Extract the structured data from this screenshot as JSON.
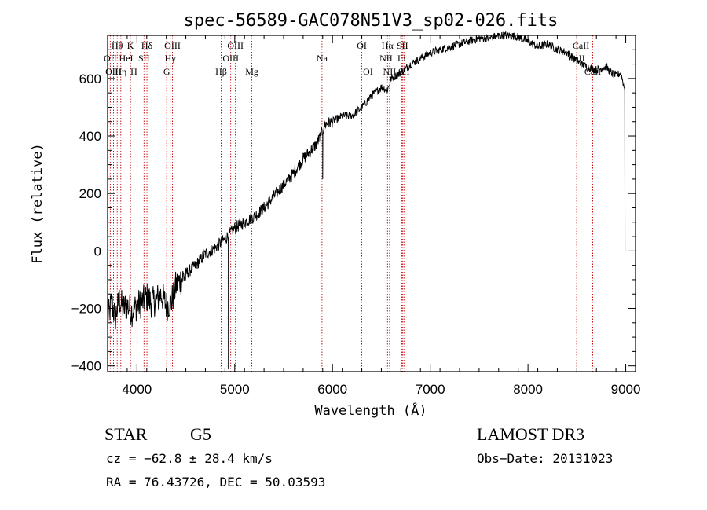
{
  "chart_data": {
    "type": "line",
    "title": "spec-56589-GAC078N51V3_sp02-026.fits",
    "xlabel": "Wavelength (Å)",
    "ylabel": "Flux (relative)",
    "xlim": [
      3700,
      9100
    ],
    "ylim": [
      -420,
      750
    ],
    "xticks": [
      4000,
      5000,
      6000,
      7000,
      8000,
      9000
    ],
    "xtick_labels": [
      "4000",
      "5000",
      "6000",
      "7000",
      "8000",
      "9000"
    ],
    "yticks": [
      -400,
      -200,
      0,
      200,
      400,
      600
    ],
    "ytick_labels": [
      "−400",
      "−200",
      "0",
      "200",
      "400",
      "600"
    ],
    "series": [
      {
        "name": "spectrum",
        "x": [
          3700,
          3740,
          3780,
          3820,
          3860,
          3900,
          3950,
          4000,
          4050,
          4100,
          4150,
          4200,
          4250,
          4300,
          4350,
          4400,
          4450,
          4500,
          4600,
          4700,
          4800,
          4860,
          4900,
          4950,
          5000,
          5100,
          5200,
          5300,
          5400,
          5500,
          5600,
          5700,
          5780,
          5830,
          5880,
          5900,
          5920,
          6000,
          6100,
          6200,
          6300,
          6400,
          6500,
          6563,
          6600,
          6700,
          6800,
          6900,
          7000,
          7100,
          7200,
          7300,
          7400,
          7500,
          7600,
          7700,
          7800,
          7900,
          8000,
          8100,
          8200,
          8300,
          8400,
          8500,
          8600,
          8700,
          8800,
          8850,
          8900,
          8950,
          8990
        ],
        "y": [
          -240,
          -180,
          -230,
          -170,
          -200,
          -190,
          -210,
          -190,
          -180,
          -160,
          -180,
          -170,
          -150,
          -190,
          -180,
          -120,
          -100,
          -80,
          -50,
          -10,
          10,
          30,
          40,
          60,
          80,
          100,
          120,
          150,
          190,
          230,
          270,
          320,
          350,
          370,
          400,
          420,
          440,
          450,
          470,
          470,
          500,
          540,
          570,
          560,
          600,
          620,
          650,
          670,
          690,
          700,
          710,
          720,
          730,
          740,
          740,
          750,
          750,
          745,
          730,
          710,
          720,
          700,
          690,
          660,
          640,
          630,
          640,
          620,
          610,
          620,
          560
        ]
      }
    ],
    "spike_down": {
      "x": 4935,
      "y": -410
    },
    "dip_near_5900": {
      "x": 5900,
      "y": 250
    },
    "emission_lines": [
      {
        "label": "Hθ",
        "x": 3798,
        "row": 1
      },
      {
        "label": "OII",
        "x": 3727,
        "row": 2
      },
      {
        "label": "OIII",
        "x": 3760,
        "row": 3
      },
      {
        "label": "K",
        "x": 3934,
        "row": 1
      },
      {
        "label": "HeI",
        "x": 3889,
        "row": 2
      },
      {
        "label": "Hη",
        "x": 3835,
        "row": 3
      },
      {
        "label": "Hδ",
        "x": 4102,
        "row": 1
      },
      {
        "label": "SII",
        "x": 4072,
        "row": 2
      },
      {
        "label": "H",
        "x": 3969,
        "row": 3
      },
      {
        "label": "OIII",
        "x": 4363,
        "row": 1
      },
      {
        "label": "Hγ",
        "x": 4340,
        "row": 2
      },
      {
        "label": "G",
        "x": 4304,
        "row": 3
      },
      {
        "label": "OIII",
        "x": 5007,
        "row": 1
      },
      {
        "label": "OIII",
        "x": 4959,
        "row": 2
      },
      {
        "label": "Hβ",
        "x": 4861,
        "row": 3
      },
      {
        "label": "Mg",
        "x": 5175,
        "row": 3
      },
      {
        "label": "Na",
        "x": 5893,
        "row": 2
      },
      {
        "label": "OI",
        "x": 6300,
        "row": 1
      },
      {
        "label": "OI",
        "x": 6364,
        "row": 3
      },
      {
        "label": "Hα",
        "x": 6563,
        "row": 1
      },
      {
        "label": "SII",
        "x": 6716,
        "row": 1
      },
      {
        "label": "NII",
        "x": 6548,
        "row": 2
      },
      {
        "label": "Li",
        "x": 6708,
        "row": 2
      },
      {
        "label": "NII",
        "x": 6584,
        "row": 3
      },
      {
        "label": "SII",
        "x": 6731,
        "row": 3
      },
      {
        "label": "CaII",
        "x": 8542,
        "row": 1
      },
      {
        "label": "CaII",
        "x": 8498,
        "row": 2
      },
      {
        "label": "CaII",
        "x": 8662,
        "row": 3
      }
    ]
  },
  "footer": {
    "class_label": "STAR",
    "subclass": "G5",
    "survey": "LAMOST DR3",
    "cz": "cz = −62.8 ± 28.4 km/s",
    "obs_date": "Obs−Date: 20131023",
    "radec": "RA =  76.43726, DEC =  50.03593"
  },
  "colors": {
    "line_marker": "#c00000",
    "spectrum": "#000000",
    "axes": "#000000",
    "background": "#ffffff"
  }
}
